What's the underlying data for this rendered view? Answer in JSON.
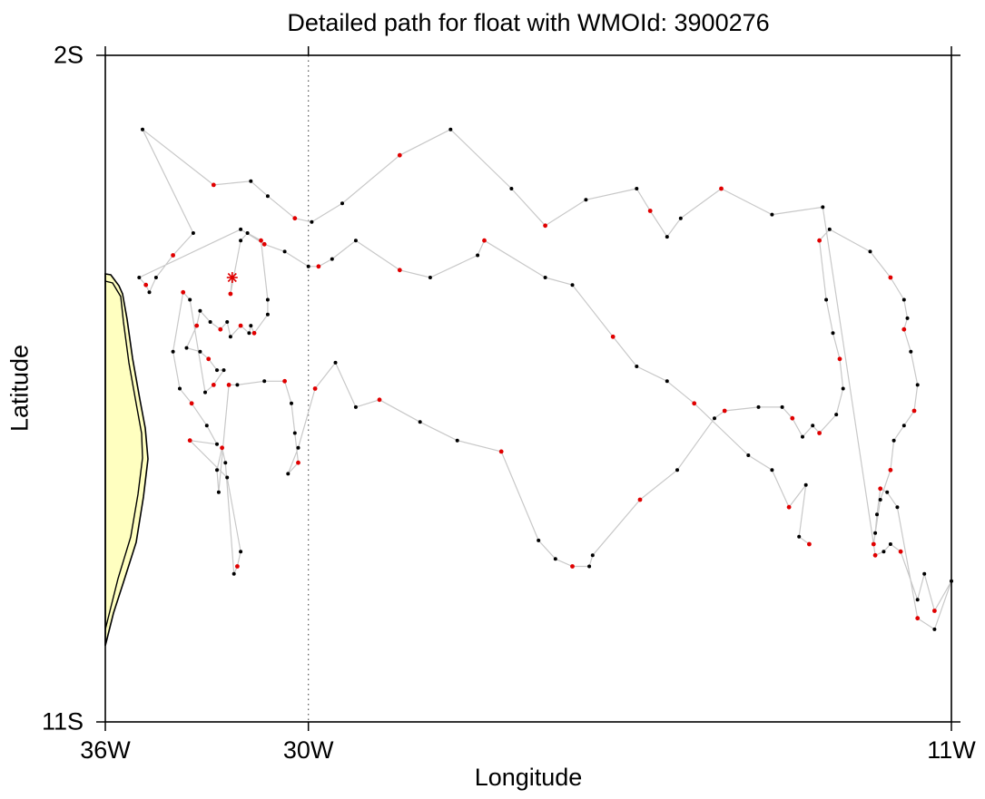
{
  "map": {
    "title": "Detailed path for float with WMOId: 3900276",
    "xlabel": "Longitude",
    "ylabel": "Latitude",
    "lon_range": [
      -36,
      -11
    ],
    "lat_range": [
      -11,
      -2
    ],
    "x_ticks": [
      {
        "value": -36,
        "label": "36W"
      },
      {
        "value": -30,
        "label": "30W"
      },
      {
        "value": -11,
        "label": "11W"
      }
    ],
    "y_ticks": [
      {
        "value": -2,
        "label": "2S"
      },
      {
        "value": -11,
        "label": "11S"
      }
    ],
    "reference_line_lon": -30,
    "colors": {
      "land": "#ffffc0",
      "coast": "#000000",
      "track": "#c8c8c8",
      "point": "#000000",
      "highlight": "#e00000",
      "start_marker": "#e00000"
    },
    "start_marker": {
      "lon": -32.25,
      "lat": -5.0
    }
  },
  "chart_data": {
    "type": "scatter",
    "title": "Detailed path for float with WMOId: 3900276",
    "xlabel": "Longitude",
    "ylabel": "Latitude",
    "xlim": [
      -36,
      -11
    ],
    "ylim": [
      -11,
      -2
    ],
    "grid": false,
    "legend": "none",
    "series": [
      {
        "values": [
          [
            -32.25,
            -5.0
          ],
          [
            -32.3,
            -5.22
          ],
          [
            -32.0,
            -4.5
          ],
          [
            -31.8,
            -4.4
          ],
          [
            -31.4,
            -4.5
          ],
          [
            -31.2,
            -5.3
          ],
          [
            -31.2,
            -5.5
          ],
          [
            -31.6,
            -5.75
          ],
          [
            -31.7,
            -5.65
          ],
          [
            -31.75,
            -5.75
          ],
          [
            -32.0,
            -5.65
          ],
          [
            -32.3,
            -5.8
          ],
          [
            -32.4,
            -5.6
          ],
          [
            -32.6,
            -5.7
          ],
          [
            -32.9,
            -5.6
          ],
          [
            -33.2,
            -5.45
          ],
          [
            -33.3,
            -5.65
          ],
          [
            -33.6,
            -5.95
          ],
          [
            -33.2,
            -6.0
          ],
          [
            -32.95,
            -6.1
          ],
          [
            -32.7,
            -6.25
          ],
          [
            -32.5,
            -6.25
          ],
          [
            -32.8,
            -6.45
          ],
          [
            -33.05,
            -6.55
          ],
          [
            -33.5,
            -5.3
          ],
          [
            -33.7,
            -5.2
          ],
          [
            -34.0,
            -6.0
          ],
          [
            -33.8,
            -6.5
          ],
          [
            -33.45,
            -6.7
          ],
          [
            -33.0,
            -7.0
          ],
          [
            -32.7,
            -7.25
          ],
          [
            -33.5,
            -7.2
          ],
          [
            -32.4,
            -7.7
          ],
          [
            -32.0,
            -8.7
          ],
          [
            -32.1,
            -8.9
          ],
          [
            -32.2,
            -9.0
          ],
          [
            -32.45,
            -7.5
          ],
          [
            -32.55,
            -7.3
          ],
          [
            -32.7,
            -7.6
          ],
          [
            -32.65,
            -7.9
          ],
          [
            -32.35,
            -6.45
          ],
          [
            -32.1,
            -6.45
          ],
          [
            -31.3,
            -6.4
          ],
          [
            -30.7,
            -6.4
          ],
          [
            -30.5,
            -6.7
          ],
          [
            -30.4,
            -7.1
          ],
          [
            -30.3,
            -7.5
          ],
          [
            -30.6,
            -7.65
          ],
          [
            -30.3,
            -7.3
          ],
          [
            -29.8,
            -6.5
          ],
          [
            -29.2,
            -6.15
          ],
          [
            -28.6,
            -6.75
          ],
          [
            -27.9,
            -6.65
          ],
          [
            -26.7,
            -6.95
          ],
          [
            -25.6,
            -7.2
          ],
          [
            -24.3,
            -7.35
          ],
          [
            -23.2,
            -8.55
          ],
          [
            -22.7,
            -8.8
          ],
          [
            -22.2,
            -8.9
          ],
          [
            -21.7,
            -8.9
          ],
          [
            -21.6,
            -8.75
          ],
          [
            -20.2,
            -8.0
          ],
          [
            -19.1,
            -7.6
          ],
          [
            -18.0,
            -6.9
          ],
          [
            -17.7,
            -6.8
          ],
          [
            -16.7,
            -6.75
          ],
          [
            -16.0,
            -6.75
          ],
          [
            -15.7,
            -6.9
          ],
          [
            -15.4,
            -7.15
          ],
          [
            -15.1,
            -7.0
          ],
          [
            -14.9,
            -7.1
          ],
          [
            -14.4,
            -6.85
          ],
          [
            -14.2,
            -6.5
          ],
          [
            -14.3,
            -6.1
          ],
          [
            -14.5,
            -5.75
          ],
          [
            -14.7,
            -5.3
          ],
          [
            -14.9,
            -4.5
          ],
          [
            -14.6,
            -4.35
          ],
          [
            -13.4,
            -4.65
          ],
          [
            -12.8,
            -5.0
          ],
          [
            -12.4,
            -5.3
          ],
          [
            -12.3,
            -5.55
          ],
          [
            -12.4,
            -5.7
          ],
          [
            -12.2,
            -6.0
          ],
          [
            -12.0,
            -6.45
          ],
          [
            -12.1,
            -6.8
          ],
          [
            -12.4,
            -7.0
          ],
          [
            -12.7,
            -7.2
          ],
          [
            -12.8,
            -7.6
          ],
          [
            -13.1,
            -8.0
          ],
          [
            -13.3,
            -8.6
          ],
          [
            -13.25,
            -8.75
          ],
          [
            -13.0,
            -8.7
          ],
          [
            -12.8,
            -8.6
          ],
          [
            -12.5,
            -8.7
          ],
          [
            -12.0,
            -9.35
          ],
          [
            -11.8,
            -9.0
          ],
          [
            -11.5,
            -9.5
          ],
          [
            -11.0,
            -9.1
          ],
          [
            -11.5,
            -9.75
          ],
          [
            -12.0,
            -9.6
          ],
          [
            -12.6,
            -8.1
          ],
          [
            -12.9,
            -7.9
          ],
          [
            -13.1,
            -7.85
          ],
          [
            -13.2,
            -8.2
          ],
          [
            -13.25,
            -8.45
          ],
          [
            -13.3,
            -8.6
          ],
          [
            -14.8,
            -4.05
          ],
          [
            -16.3,
            -4.15
          ],
          [
            -17.8,
            -3.8
          ],
          [
            -19.0,
            -4.2
          ],
          [
            -19.4,
            -4.45
          ],
          [
            -19.9,
            -4.1
          ],
          [
            -20.3,
            -3.8
          ],
          [
            -21.8,
            -3.95
          ],
          [
            -23.0,
            -4.3
          ],
          [
            -24.0,
            -3.8
          ],
          [
            -25.8,
            -3.0
          ],
          [
            -27.3,
            -3.35
          ],
          [
            -29.0,
            -4.0
          ],
          [
            -29.9,
            -4.25
          ],
          [
            -30.4,
            -4.2
          ],
          [
            -31.2,
            -3.9
          ],
          [
            -31.7,
            -3.7
          ],
          [
            -32.8,
            -3.75
          ],
          [
            -34.9,
            -3.0
          ],
          [
            -33.4,
            -4.4
          ],
          [
            -34.0,
            -4.7
          ],
          [
            -34.5,
            -5.0
          ],
          [
            -34.7,
            -5.2
          ],
          [
            -34.8,
            -5.1
          ],
          [
            -35.0,
            -5.0
          ],
          [
            -32.0,
            -4.35
          ],
          [
            -31.3,
            -4.55
          ],
          [
            -30.7,
            -4.65
          ],
          [
            -30.0,
            -4.85
          ],
          [
            -29.7,
            -4.85
          ],
          [
            -29.3,
            -4.75
          ],
          [
            -28.6,
            -4.5
          ],
          [
            -27.3,
            -4.9
          ],
          [
            -26.4,
            -5.0
          ],
          [
            -25.0,
            -4.7
          ],
          [
            -24.8,
            -4.5
          ],
          [
            -23.0,
            -5.0
          ],
          [
            -22.2,
            -5.1
          ],
          [
            -21.0,
            -5.8
          ],
          [
            -20.3,
            -6.2
          ],
          [
            -19.4,
            -6.4
          ],
          [
            -18.6,
            -6.7
          ],
          [
            -17.0,
            -7.4
          ],
          [
            -16.3,
            -7.6
          ],
          [
            -15.8,
            -8.1
          ],
          [
            -15.3,
            -7.8
          ],
          [
            -15.5,
            -8.5
          ],
          [
            -15.2,
            -8.6
          ]
        ]
      }
    ]
  }
}
